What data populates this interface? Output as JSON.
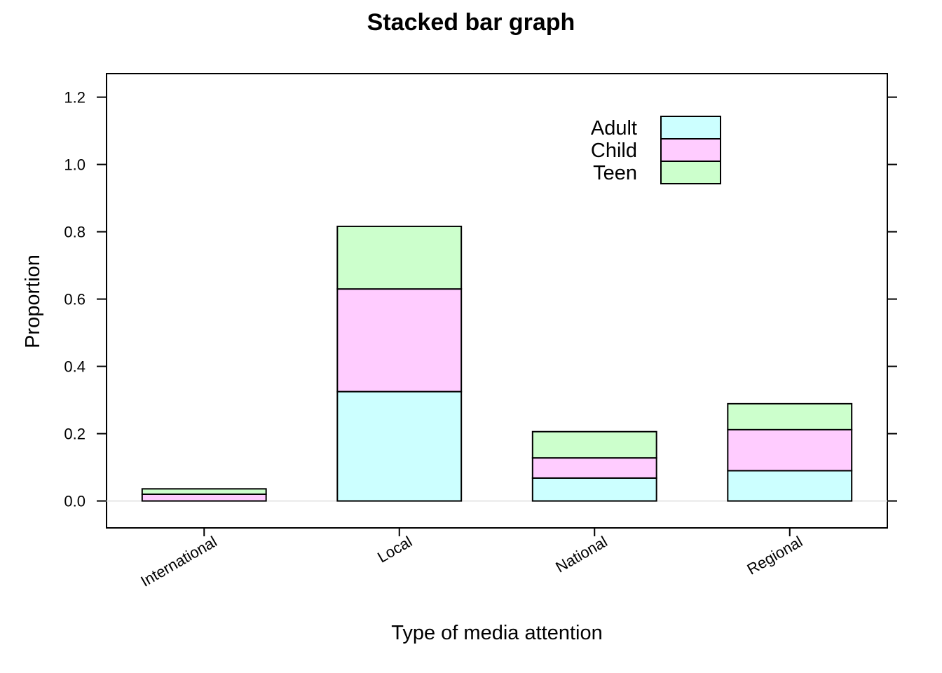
{
  "chart_data": {
    "type": "bar",
    "stacked": true,
    "title": "Stacked bar graph",
    "xlabel": "Type of media attention",
    "ylabel": "Proportion",
    "categories": [
      "International",
      "Local",
      "National",
      "Regional"
    ],
    "series": [
      {
        "name": "Adult",
        "color": "#ccffff",
        "values": [
          0.0,
          0.325,
          0.068,
          0.09
        ]
      },
      {
        "name": "Child",
        "color": "#ffccff",
        "values": [
          0.02,
          0.305,
          0.06,
          0.122
        ]
      },
      {
        "name": "Teen",
        "color": "#ccffcc",
        "values": [
          0.016,
          0.186,
          0.078,
          0.077
        ]
      }
    ],
    "ylim": [
      -0.08,
      1.27
    ],
    "yticks": [
      0.0,
      0.2,
      0.4,
      0.6,
      0.8,
      1.0,
      1.2
    ],
    "ytick_labels": [
      "0.0",
      "0.2",
      "0.4",
      "0.6",
      "0.8",
      "1.0",
      "1.2"
    ],
    "legend_position": "top-right",
    "reference_line": 0,
    "grid": false
  }
}
